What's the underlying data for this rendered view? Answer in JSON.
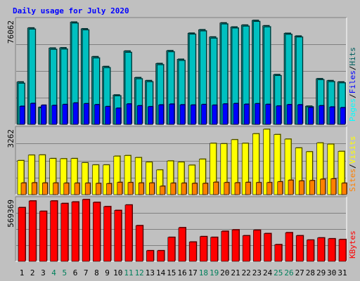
{
  "colors": {
    "background": "#C0C0C0",
    "panel": "#C0C0C0",
    "title": "#0000FF",
    "hits": "#00FFFF",
    "hits_dark": "#007F7F",
    "files": "#00C0C0",
    "files_dark": "#005F5F",
    "pages": "#0000FF",
    "visits": "#FFFF00",
    "visits_dark": "#7F7F00",
    "sites": "#FF8000",
    "sites_dark": "#7F4000",
    "kbytes": "#FF0000",
    "kbytes_dark": "#7F0000",
    "weekend_label": "#00805C",
    "weekday_label": "#000000",
    "sep": "#000000"
  },
  "chart_data": {
    "type": "bar",
    "title": "Daily usage for July 2020",
    "days": [
      "1",
      "2",
      "3",
      "4",
      "5",
      "6",
      "7",
      "8",
      "9",
      "10",
      "11",
      "12",
      "13",
      "14",
      "15",
      "16",
      "17",
      "18",
      "19",
      "20",
      "21",
      "22",
      "23",
      "24",
      "25",
      "26",
      "27",
      "28",
      "29",
      "30",
      "31"
    ],
    "weekend_days": [
      "4",
      "5",
      "11",
      "12",
      "18",
      "19",
      "25",
      "26"
    ],
    "panels": [
      {
        "name": "usage",
        "ylabel_parts": [
          "Pages",
          "/",
          "Files",
          "/",
          "Hits"
        ],
        "max_label": "76062",
        "ymax": 76062,
        "series": [
          {
            "name": "Hits",
            "values": [
              31000,
              70500,
              12500,
              55800,
              56000,
              74800,
              69900,
              49500,
              42300,
              21500,
              53600,
              34200,
              32000,
              44500,
              53900,
              47600,
              66700,
              69200,
              63900,
              74200,
              71200,
              72600,
              76062,
              72100,
              36400,
              66600,
              64600,
              13300,
              33400,
              32000,
              31000
            ]
          },
          {
            "name": "Files",
            "values": [
              30000,
              69600,
              12000,
              54800,
              55000,
              74000,
              69000,
              48500,
              41400,
              20800,
              52600,
              33300,
              31100,
              43600,
              53000,
              46700,
              65900,
              68300,
              63000,
              73400,
              70400,
              71800,
              75200,
              71300,
              35600,
              65800,
              63800,
              12800,
              32600,
              31200,
              30300
            ]
          },
          {
            "name": "Pages",
            "values": [
              13200,
              15300,
              14000,
              13800,
              14500,
              15600,
              15100,
              14400,
              13000,
              11800,
              14900,
              13600,
              12900,
              14200,
              14800,
              14300,
              14100,
              14500,
              14000,
              14900,
              15200,
              14700,
              15100,
              14600,
              13400,
              14400,
              14300,
              12300,
              13600,
              12700,
              12200
            ]
          }
        ]
      },
      {
        "name": "visits",
        "ylabel_parts": [
          "Sites",
          "/",
          "Visits"
        ],
        "max_label": "3262",
        "ymax": 3262,
        "series": [
          {
            "name": "Visits",
            "values": [
              1700,
              1970,
              1980,
              1800,
              1790,
              1800,
              1590,
              1480,
              1480,
              1920,
              1950,
              1850,
              1620,
              1230,
              1680,
              1620,
              1470,
              1770,
              2560,
              2540,
              2740,
              2560,
              3040,
              3262,
              3000,
              2770,
              2330,
              2140,
              2580,
              2520,
              2160
            ]
          },
          {
            "name": "Sites",
            "values": [
              580,
              590,
              580,
              580,
              570,
              570,
              570,
              560,
              550,
              610,
              600,
              580,
              580,
              420,
              570,
              570,
              560,
              560,
              620,
              600,
              590,
              610,
              600,
              600,
              640,
              720,
              680,
              700,
              770,
              790,
              570
            ]
          }
        ]
      },
      {
        "name": "kbytes",
        "ylabel_parts": [
          "KBytes"
        ],
        "max_label": "569369",
        "ymax": 569369,
        "series": [
          {
            "name": "KBytes",
            "values": [
              495000,
              556000,
              461000,
              556000,
              533000,
              547000,
              569369,
              543000,
              504000,
              469000,
              519000,
              329000,
              98000,
              98000,
              221000,
              310000,
              178000,
              228000,
              221000,
              277000,
              290000,
              236000,
              287000,
              256000,
              154000,
              264000,
              236000,
              196000,
              216000,
              208000,
              201000
            ]
          }
        ]
      }
    ]
  }
}
